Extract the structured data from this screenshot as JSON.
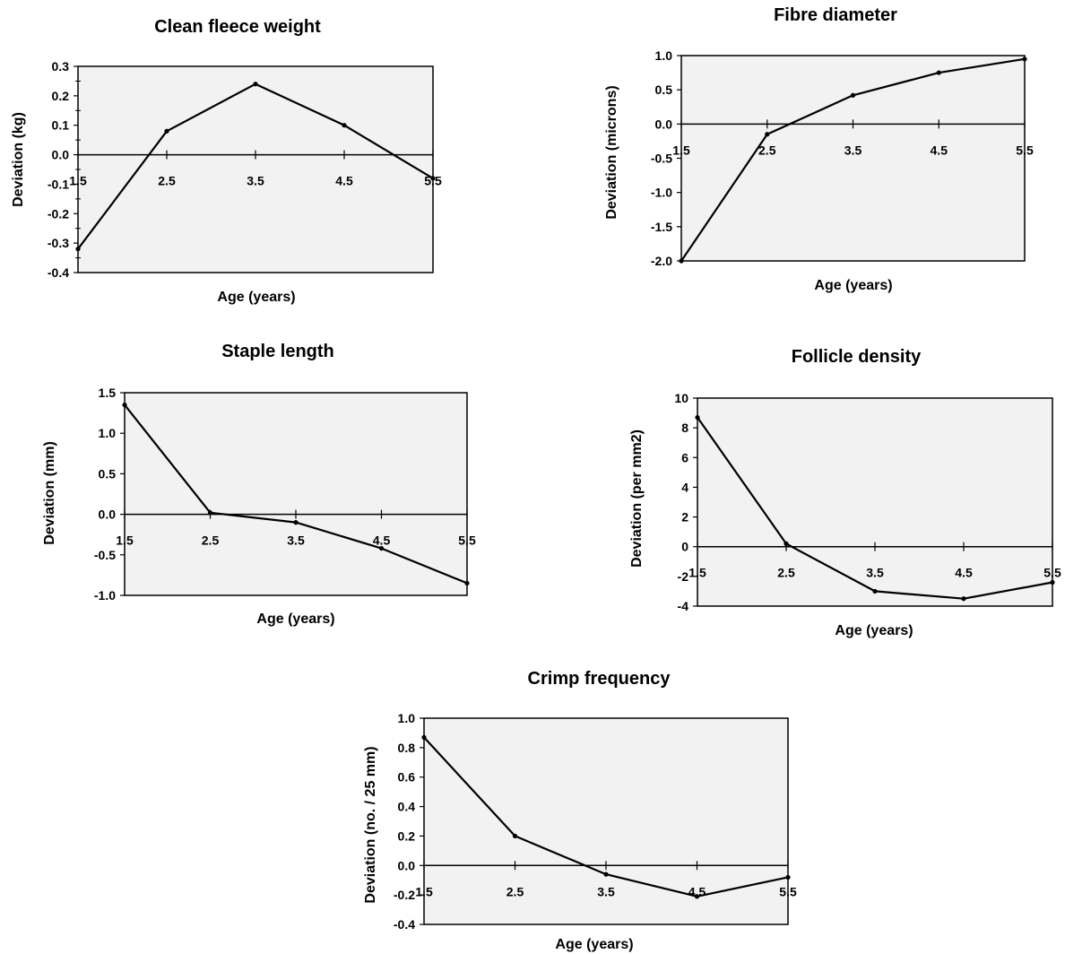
{
  "chart_data": [
    {
      "type": "line",
      "title": "Clean fleece weight",
      "xlabel": "Age (years)",
      "ylabel": "Deviation (kg)",
      "categories": [
        "1.5",
        "2.5",
        "3.5",
        "4.5",
        "5.5"
      ],
      "x": [
        1.5,
        2.5,
        3.5,
        4.5,
        5.5
      ],
      "values": [
        -0.32,
        0.08,
        0.24,
        0.1,
        -0.08
      ],
      "ylim": [
        -0.4,
        0.3
      ],
      "yticks": [
        0.3,
        0.2,
        0.1,
        0.0,
        -0.1,
        -0.2,
        -0.3,
        -0.4
      ],
      "ytick_labels": [
        "0.3",
        "0.2",
        "0.1",
        "0.0",
        "-0.1",
        "-0.2",
        "-0.3",
        "-0.4"
      ],
      "grid": false,
      "colors": {
        "plot_bg": "#f2f2f2",
        "line": "#000000"
      }
    },
    {
      "type": "line",
      "title": "Fibre diameter",
      "xlabel": "Age (years)",
      "ylabel": "Deviation (microns)",
      "categories": [
        "1.5",
        "2.5",
        "3.5",
        "4.5",
        "5.5"
      ],
      "x": [
        1.5,
        2.5,
        3.5,
        4.5,
        5.5
      ],
      "values": [
        -2.0,
        -0.15,
        0.42,
        0.75,
        0.95
      ],
      "ylim": [
        -2.0,
        1.0
      ],
      "yticks": [
        1.0,
        0.5,
        0.0,
        -0.5,
        -1.0,
        -1.5,
        -2.0
      ],
      "ytick_labels": [
        "1.0",
        "0.5",
        "0.0",
        "-0.5",
        "-1.0",
        "-1.5",
        "-2.0"
      ],
      "grid": false,
      "colors": {
        "plot_bg": "#f2f2f2",
        "line": "#000000"
      }
    },
    {
      "type": "line",
      "title": "Staple length",
      "xlabel": "Age (years)",
      "ylabel": "Deviation (mm)",
      "categories": [
        "1.5",
        "2.5",
        "3.5",
        "4.5",
        "5.5"
      ],
      "x": [
        1.5,
        2.5,
        3.5,
        4.5,
        5.5
      ],
      "values": [
        1.35,
        0.02,
        -0.1,
        -0.42,
        -0.85
      ],
      "ylim": [
        -1.0,
        1.5
      ],
      "yticks": [
        1.5,
        1.0,
        0.5,
        0.0,
        -0.5,
        -1.0
      ],
      "ytick_labels": [
        "1.5",
        "1.0",
        "0.5",
        "0.0",
        "-0.5",
        "-1.0"
      ],
      "grid": false,
      "colors": {
        "plot_bg": "#f2f2f2",
        "line": "#000000"
      }
    },
    {
      "type": "line",
      "title": "Follicle density",
      "xlabel": "Age (years)",
      "ylabel": "Deviation (per mm2)",
      "categories": [
        "1.5",
        "2.5",
        "3.5",
        "4.5",
        "5.5"
      ],
      "x": [
        1.5,
        2.5,
        3.5,
        4.5,
        5.5
      ],
      "values": [
        8.7,
        0.2,
        -3.0,
        -3.5,
        -2.4
      ],
      "ylim": [
        -4,
        10
      ],
      "yticks": [
        10,
        8,
        6,
        4,
        2,
        0,
        -2,
        -4
      ],
      "ytick_labels": [
        "10",
        "8",
        "6",
        "4",
        "2",
        "0",
        "-2",
        "-4"
      ],
      "grid": false,
      "colors": {
        "plot_bg": "#f2f2f2",
        "line": "#000000"
      }
    },
    {
      "type": "line",
      "title": "Crimp frequency",
      "xlabel": "Age (years)",
      "ylabel": "Deviation (no. / 25 mm)",
      "categories": [
        "1.5",
        "2.5",
        "3.5",
        "4.5",
        "5.5"
      ],
      "x": [
        1.5,
        2.5,
        3.5,
        4.5,
        5.5
      ],
      "values": [
        0.87,
        0.2,
        -0.06,
        -0.21,
        -0.08
      ],
      "ylim": [
        -0.4,
        1.0
      ],
      "yticks": [
        1.0,
        0.8,
        0.6,
        0.4,
        0.2,
        0.0,
        -0.2,
        -0.4
      ],
      "ytick_labels": [
        "1.0",
        "0.8",
        "0.6",
        "0.4",
        "0.2",
        "0.0",
        "-0.2",
        "-0.4"
      ],
      "grid": false,
      "colors": {
        "plot_bg": "#f2f2f2",
        "line": "#000000"
      }
    }
  ]
}
